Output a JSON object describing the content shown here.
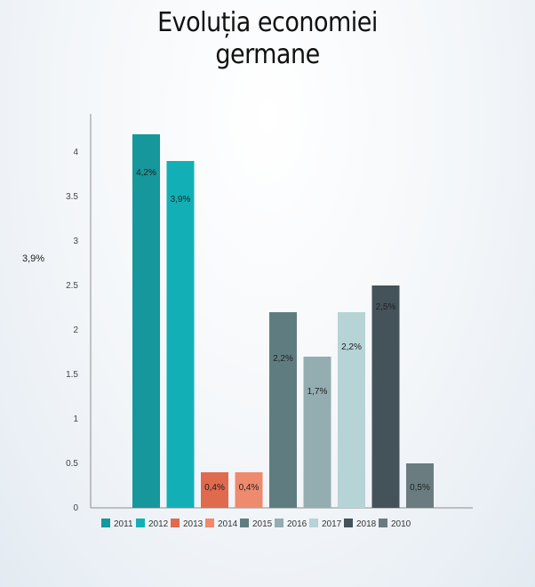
{
  "title_line1": "Evoluția economiei",
  "title_line2": "germane",
  "side_note": "3,9%",
  "chart_data": {
    "type": "bar",
    "title": "Evoluția economiei germane",
    "categories": [
      "2011",
      "2012",
      "2013",
      "2014",
      "2015",
      "2016",
      "2017",
      "2018",
      "2010"
    ],
    "values": [
      4.2,
      3.9,
      0.4,
      0.4,
      2.2,
      1.7,
      2.2,
      2.5,
      0.5
    ],
    "data_labels": [
      "4,2%",
      "3,9%",
      "0,4%",
      "0,4%",
      "2,2%",
      "1,7%",
      "2,2%",
      "2,5%",
      "0,5%"
    ],
    "colors": [
      "#16979b",
      "#12b0b6",
      "#e06a4d",
      "#ee8a6e",
      "#5f7d81",
      "#93adb0",
      "#b6d3d6",
      "#44525a",
      "#6b7c80"
    ],
    "yticks": [
      "0",
      "0.5",
      "1",
      "1.5",
      "2",
      "2.5",
      "3",
      "3.5",
      "4"
    ],
    "ylim": [
      0,
      4.4
    ],
    "legend_position": "bottom",
    "grid": false
  }
}
